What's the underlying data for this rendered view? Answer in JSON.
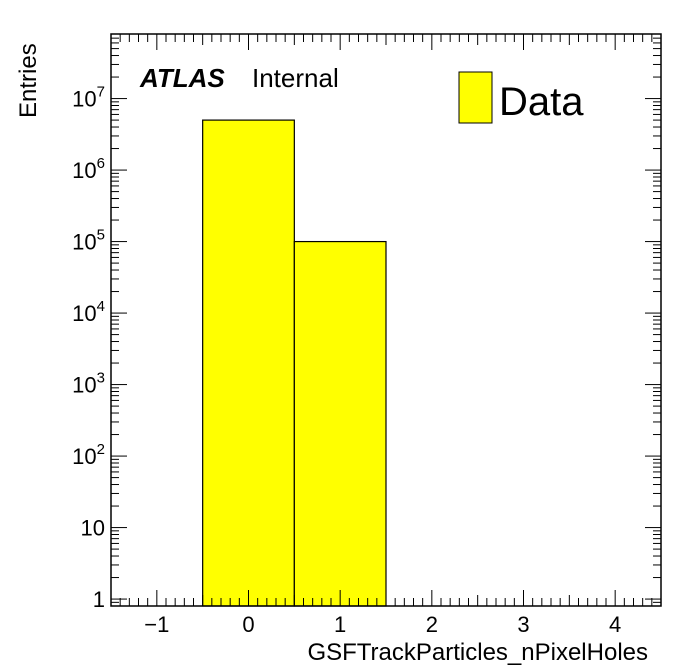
{
  "chart_data": {
    "type": "bar",
    "histogram": true,
    "xlabel": "GSFTrackParticles_nPixelHoles",
    "ylabel": "Entries",
    "xlim": [
      -1.5,
      4.5
    ],
    "ylim": [
      0.8,
      80000000
    ],
    "yscale": "log",
    "bin_edges": [
      -1.5,
      -0.5,
      0.5,
      1.5,
      2.5,
      3.5,
      4.5
    ],
    "bin_contents": [
      0,
      5000000,
      100000,
      0,
      0,
      0
    ],
    "x_ticks": [
      {
        "value": -1,
        "label": "−1"
      },
      {
        "value": 0,
        "label": "0"
      },
      {
        "value": 1,
        "label": "1"
      },
      {
        "value": 2,
        "label": "2"
      },
      {
        "value": 3,
        "label": "3"
      },
      {
        "value": 4,
        "label": "4"
      }
    ],
    "y_ticks": [
      {
        "value": 1,
        "base": "1",
        "exp": ""
      },
      {
        "value": 10,
        "base": "10",
        "exp": ""
      },
      {
        "value": 100,
        "base": "10",
        "exp": "2"
      },
      {
        "value": 1000,
        "base": "10",
        "exp": "3"
      },
      {
        "value": 10000,
        "base": "10",
        "exp": "4"
      },
      {
        "value": 100000,
        "base": "10",
        "exp": "5"
      },
      {
        "value": 1000000,
        "base": "10",
        "exp": "6"
      },
      {
        "value": 10000000,
        "base": "10",
        "exp": "7"
      }
    ],
    "legend": {
      "entries": [
        {
          "label": "Data"
        }
      ],
      "position": "top-right"
    },
    "fill_color": "#ffff00",
    "edge_color": "#000000",
    "grid": false
  },
  "labels": {
    "atlas": "ATLAS",
    "internal": "Internal"
  }
}
